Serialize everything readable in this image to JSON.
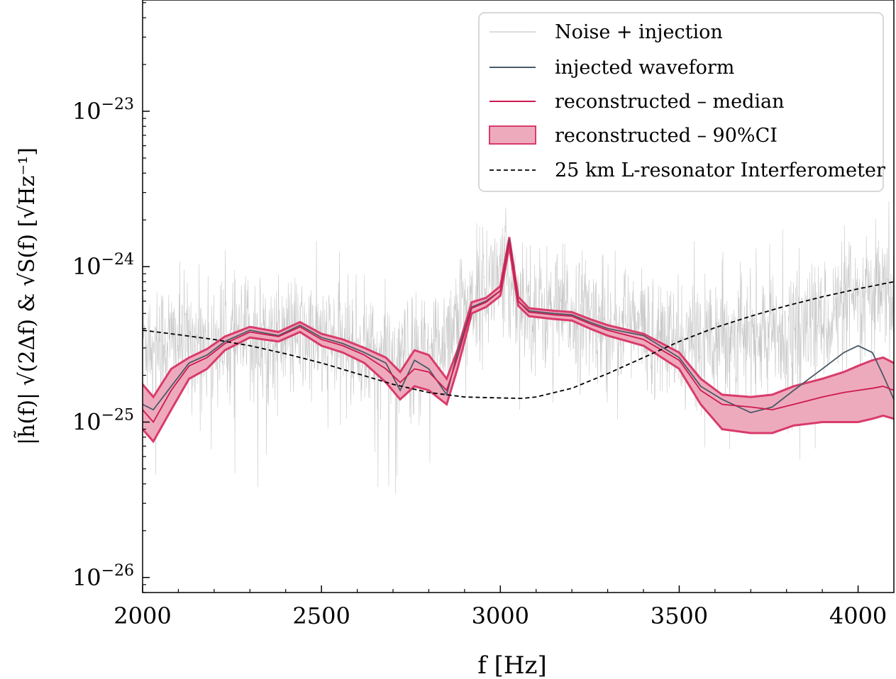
{
  "chart_data": {
    "type": "line",
    "title": "",
    "xlabel": "f [Hz]",
    "ylabel": "|h̃(f)| √(2Δf) & √S(f)   [√Hz⁻¹]",
    "xscale": "linear",
    "yscale": "log",
    "xlim": [
      2000,
      4100
    ],
    "ylim": [
      8e-27,
      5.2e-23
    ],
    "x_ticks": [
      2000,
      2500,
      3000,
      3500,
      4000
    ],
    "x_tick_labels": [
      "2000",
      "2500",
      "3000",
      "3500",
      "4000"
    ],
    "y_tick_labels": [
      {
        "base": "10",
        "exp": "−23",
        "value": 1e-23
      },
      {
        "base": "10",
        "exp": "−24",
        "value": 1e-24
      },
      {
        "base": "10",
        "exp": "−25",
        "value": 1e-25
      },
      {
        "base": "10",
        "exp": "−26",
        "value": 1e-26
      }
    ],
    "grid": false,
    "legend_position": "top-right",
    "legend": [
      "Noise + injection",
      "injected waveform",
      "reconstructed – median",
      "reconstructed – 90%CI",
      "25 km L-resonator Interferometer"
    ],
    "colors": {
      "noise": "#c8c8c8",
      "injected": "#4a5a66",
      "median": "#cc1a4f",
      "ci_fill": "#eeaabd",
      "ci_edge": "#d93b6b",
      "detector": "#000000"
    },
    "series": [
      {
        "name": "Noise + injection",
        "style": "noise",
        "x": [
          2000,
          2100,
          2200,
          2300,
          2400,
          2500,
          2600,
          2700,
          2800,
          2900,
          3000,
          3100,
          3200,
          3300,
          3400,
          3500,
          3600,
          3700,
          3800,
          3900,
          4000,
          4100
        ],
        "values": [
          3.5e-25,
          3.3e-25,
          3.3e-25,
          3.4e-25,
          3.6e-25,
          3.3e-25,
          3e-25,
          2.4e-25,
          2.6e-25,
          5.5e-25,
          9e-25,
          5.3e-25,
          5e-25,
          4.4e-25,
          4e-25,
          3e-25,
          4e-25,
          3.5e-25,
          3.8e-25,
          4.6e-25,
          6e-25,
          6.5e-25
        ]
      },
      {
        "name": "25 km L-resonator Interferometer",
        "style": "detector",
        "x": [
          2000,
          2100,
          2200,
          2300,
          2400,
          2500,
          2600,
          2700,
          2800,
          2900,
          3000,
          3060,
          3100,
          3200,
          3300,
          3400,
          3500,
          3600,
          3700,
          3800,
          3900,
          4000,
          4100
        ],
        "values": [
          3.9e-25,
          3.65e-25,
          3.4e-25,
          3.1e-25,
          2.75e-25,
          2.4e-25,
          2.05e-25,
          1.75e-25,
          1.55e-25,
          1.45e-25,
          1.43e-25,
          1.42e-25,
          1.45e-25,
          1.65e-25,
          2.05e-25,
          2.6e-25,
          3.3e-25,
          4.05e-25,
          4.8e-25,
          5.6e-25,
          6.4e-25,
          7.2e-25,
          8e-25
        ]
      },
      {
        "name": "injected waveform",
        "style": "injected",
        "x": [
          2000,
          2030,
          2080,
          2130,
          2180,
          2230,
          2300,
          2380,
          2440,
          2500,
          2560,
          2620,
          2680,
          2720,
          2760,
          2800,
          2850,
          2880,
          2920,
          2960,
          3000,
          3025,
          3050,
          3080,
          3150,
          3200,
          3250,
          3300,
          3400,
          3500,
          3560,
          3620,
          3700,
          3760,
          3820,
          3900,
          3960,
          4000,
          4040,
          4070,
          4100
        ],
        "values": [
          1.3e-25,
          1.2e-25,
          1.7e-25,
          2.4e-25,
          2.7e-25,
          3.3e-25,
          3.9e-25,
          3.6e-25,
          4.2e-25,
          3.5e-25,
          3.2e-25,
          2.8e-25,
          2.4e-25,
          1.6e-25,
          2.5e-25,
          2.2e-25,
          1.5e-25,
          2.8e-25,
          5.5e-25,
          6e-25,
          7e-25,
          1.5e-24,
          6e-25,
          5.2e-25,
          5e-25,
          4.9e-25,
          4.4e-25,
          4e-25,
          3.6e-25,
          2.6e-25,
          1.7e-25,
          1.4e-25,
          1.15e-25,
          1.25e-25,
          1.6e-25,
          2.2e-25,
          2.8e-25,
          3.1e-25,
          2.8e-25,
          2e-25,
          1.4e-25
        ]
      },
      {
        "name": "reconstructed – median",
        "style": "median",
        "x": [
          2000,
          2030,
          2080,
          2130,
          2180,
          2230,
          2300,
          2380,
          2440,
          2500,
          2560,
          2620,
          2680,
          2720,
          2760,
          2800,
          2850,
          2880,
          2920,
          2960,
          3000,
          3025,
          3050,
          3080,
          3150,
          3200,
          3250,
          3300,
          3400,
          3500,
          3560,
          3620,
          3700,
          3760,
          3820,
          3900,
          3960,
          4000,
          4040,
          4070,
          4100
        ],
        "values": [
          1.2e-25,
          1e-25,
          1.6e-25,
          2.3e-25,
          2.6e-25,
          3.2e-25,
          3.8e-25,
          3.55e-25,
          4.1e-25,
          3.4e-25,
          3.1e-25,
          2.7e-25,
          2.2e-25,
          1.8e-25,
          2.2e-25,
          2.1e-25,
          1.6e-25,
          2.6e-25,
          5.4e-25,
          5.9e-25,
          7e-25,
          1.45e-24,
          6e-25,
          5.1e-25,
          4.9e-25,
          4.8e-25,
          4.3e-25,
          3.9e-25,
          3.4e-25,
          2.5e-25,
          1.6e-25,
          1.3e-25,
          1.25e-25,
          1.2e-25,
          1.3e-25,
          1.45e-25,
          1.55e-25,
          1.6e-25,
          1.65e-25,
          1.7e-25,
          1.6e-25
        ]
      },
      {
        "name": "reconstructed – 90%CI",
        "style": "ci",
        "x": [
          2000,
          2030,
          2080,
          2130,
          2180,
          2230,
          2300,
          2380,
          2440,
          2500,
          2560,
          2620,
          2680,
          2720,
          2760,
          2800,
          2850,
          2880,
          2920,
          2960,
          3000,
          3025,
          3050,
          3080,
          3150,
          3200,
          3250,
          3300,
          3400,
          3500,
          3560,
          3620,
          3700,
          3760,
          3820,
          3900,
          3960,
          4000,
          4040,
          4070,
          4100
        ],
        "lower": [
          9e-26,
          7.5e-26,
          1.2e-25,
          1.9e-25,
          2.2e-25,
          2.9e-25,
          3.5e-25,
          3.3e-25,
          3.8e-25,
          3.1e-25,
          2.8e-25,
          2.4e-25,
          1.8e-25,
          1.4e-25,
          1.7e-25,
          1.6e-25,
          1.3e-25,
          2.2e-25,
          5e-25,
          5.5e-25,
          6.5e-25,
          1.35e-24,
          5.6e-25,
          4.8e-25,
          4.6e-25,
          4.5e-25,
          4e-25,
          3.6e-25,
          3.1e-25,
          2.2e-25,
          1.3e-25,
          9e-26,
          8.5e-26,
          8.5e-26,
          9.5e-26,
          1e-25,
          1e-25,
          1e-25,
          1.05e-25,
          1.1e-25,
          1.05e-25
        ],
        "upper": [
          1.75e-25,
          1.45e-25,
          2.2e-25,
          2.6e-25,
          2.95e-25,
          3.55e-25,
          4.1e-25,
          3.8e-25,
          4.4e-25,
          3.7e-25,
          3.4e-25,
          3e-25,
          2.6e-25,
          2.1e-25,
          2.9e-25,
          2.7e-25,
          1.9e-25,
          2.9e-25,
          5.9e-25,
          6.3e-25,
          7.5e-25,
          1.55e-24,
          6.4e-25,
          5.4e-25,
          5.2e-25,
          5.1e-25,
          4.6e-25,
          4.2e-25,
          3.7e-25,
          2.8e-25,
          1.9e-25,
          1.5e-25,
          1.45e-25,
          1.5e-25,
          1.7e-25,
          1.9e-25,
          2.1e-25,
          2.3e-25,
          2.5e-25,
          2.6e-25,
          2.4e-25
        ]
      }
    ]
  }
}
